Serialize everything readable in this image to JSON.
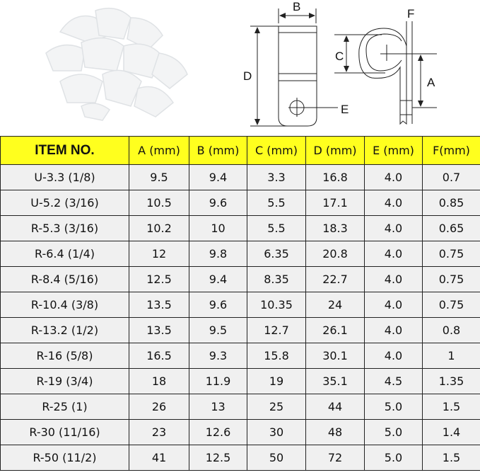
{
  "diagram": {
    "labels": {
      "b": "B",
      "d": "D",
      "e": "E",
      "c": "C",
      "f": "F",
      "a": "A"
    }
  },
  "table": {
    "headers": [
      "ITEM NO.",
      "A (mm)",
      "B (mm)",
      "C (mm)",
      "D (mm)",
      "E (mm)",
      "F(mm)"
    ],
    "rows": [
      [
        "U-3.3 (1/8)",
        "9.5",
        "9.4",
        "3.3",
        "16.8",
        "4.0",
        "0.7"
      ],
      [
        "U-5.2 (3/16)",
        "10.5",
        "9.6",
        "5.5",
        "17.1",
        "4.0",
        "0.85"
      ],
      [
        "R-5.3 (3/16)",
        "10.2",
        "10",
        "5.5",
        "18.3",
        "4.0",
        "0.65"
      ],
      [
        "R-6.4 (1/4)",
        "12",
        "9.8",
        "6.35",
        "20.8",
        "4.0",
        "0.75"
      ],
      [
        "R-8.4 (5/16)",
        "12.5",
        "9.4",
        "8.35",
        "22.7",
        "4.0",
        "0.75"
      ],
      [
        "R-10.4 (3/8)",
        "13.5",
        "9.6",
        "10.35",
        "24",
        "4.0",
        "0.75"
      ],
      [
        "R-13.2 (1/2)",
        "13.5",
        "9.5",
        "12.7",
        "26.1",
        "4.0",
        "0.8"
      ],
      [
        "R-16 (5/8)",
        "16.5",
        "9.3",
        "15.8",
        "30.1",
        "4.0",
        "1"
      ],
      [
        "R-19 (3/4)",
        "18",
        "11.9",
        "19",
        "35.1",
        "4.5",
        "1.35"
      ],
      [
        "R-25 (1)",
        "26",
        "13",
        "25",
        "44",
        "5.0",
        "1.5"
      ],
      [
        "R-30 (11/16)",
        "23",
        "12.6",
        "30",
        "48",
        "5.0",
        "1.4"
      ],
      [
        "R-50 (11/2)",
        "41",
        "12.5",
        "50",
        "72",
        "5.0",
        "1.5"
      ]
    ]
  }
}
